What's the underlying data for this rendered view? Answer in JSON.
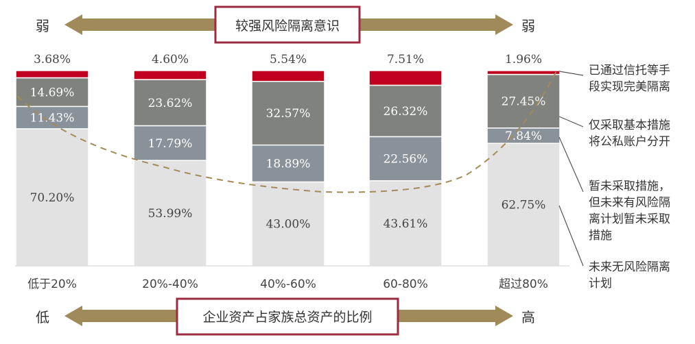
{
  "top_banner": {
    "left": "弱",
    "title": "较强风险隔离意识",
    "right": "弱"
  },
  "bottom_banner": {
    "left": "低",
    "title": "企业资产占家族总资产的比例",
    "right": "高"
  },
  "colors": {
    "bar_none": "#e2e2e2",
    "bar_plan": "#8a9299",
    "bar_basic": "#7f827d",
    "bar_trust": "#c0001e",
    "arrow": "#a08a5a",
    "frame": "#9c2a40",
    "curve": "#a38a57"
  },
  "chart_data": {
    "type": "bar",
    "stacked": true,
    "categories": [
      "低于20%",
      "20%-40%",
      "40%-60%",
      "60-80%",
      "超过80%"
    ],
    "series": [
      {
        "name": "未来无风险隔离计划",
        "values": [
          70.2,
          53.99,
          43.0,
          43.61,
          62.75
        ],
        "labels": [
          "70.20%",
          "53.99%",
          "43.00%",
          "43.61%",
          "62.75%"
        ]
      },
      {
        "name": "暂未采取措施，但未来有风险隔离计划暂未采取措施",
        "values": [
          11.43,
          17.79,
          18.89,
          22.56,
          7.84
        ],
        "labels": [
          "11.43%",
          "17.79%",
          "18.89%",
          "22.56%",
          "7.84%"
        ]
      },
      {
        "name": "仅采取基本措施将公私账户分开",
        "values": [
          14.69,
          23.62,
          32.57,
          26.32,
          27.45
        ],
        "labels": [
          "14.69%",
          "23.62%",
          "32.57%",
          "26.32%",
          "27.45%"
        ]
      },
      {
        "name": "已通过信托等手段实现完美隔离",
        "values": [
          3.68,
          4.6,
          5.54,
          7.51,
          1.96
        ],
        "labels": [
          "3.68%",
          "4.60%",
          "5.54%",
          "7.51%",
          "1.96%"
        ]
      }
    ],
    "legend": [
      {
        "lines": [
          "已通过信托等手",
          "段实现完美隔离"
        ]
      },
      {
        "lines": [
          "仅采取基本措施",
          "将公私账户分开"
        ]
      },
      {
        "lines": [
          "暂未采取措施，",
          "但未来有风险隔",
          "离计划暂未采取",
          "措施"
        ]
      },
      {
        "lines": [
          "未来无风险隔离",
          "计划"
        ]
      }
    ],
    "legend_position": "right",
    "ylim": [
      0,
      100
    ],
    "grid": false
  }
}
